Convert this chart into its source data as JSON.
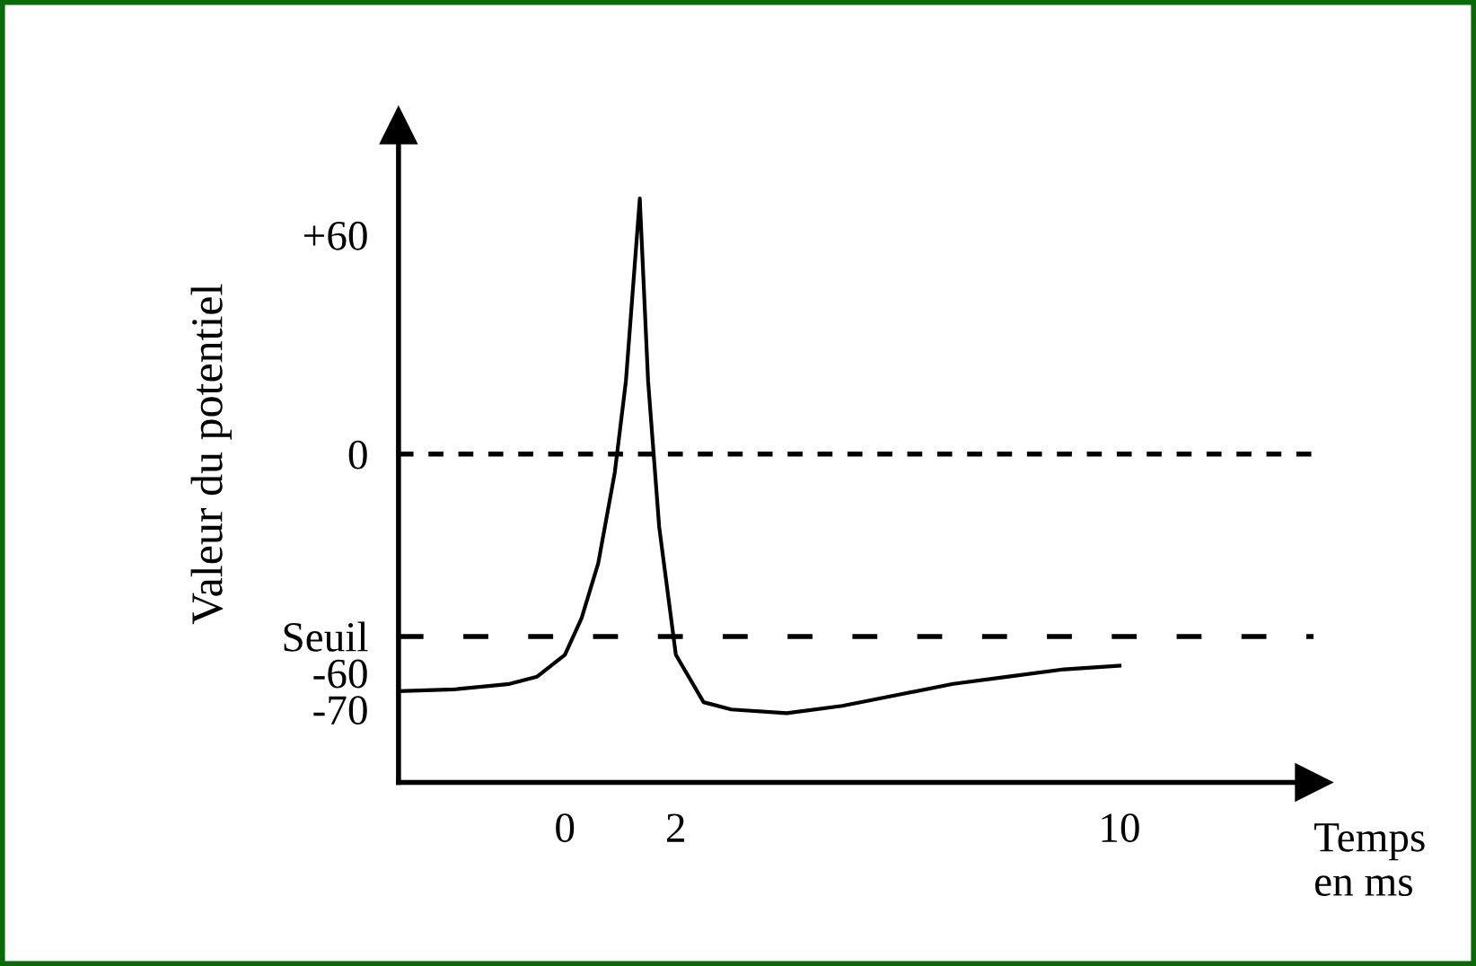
{
  "chart_data": {
    "type": "line",
    "xlabel": "Temps\nen ms",
    "ylabel": "Valeur du potentiel",
    "x": [
      -3,
      -2,
      -1,
      -0.5,
      0,
      0.3,
      0.6,
      0.9,
      1.1,
      1.25,
      1.35,
      1.5,
      1.7,
      2,
      2.5,
      3,
      4,
      5,
      6,
      7,
      8,
      9,
      10
    ],
    "series": [
      {
        "color": "#000000",
        "values": [
          -65,
          -64.5,
          -63,
          -61,
          -55,
          -45,
          -30,
          -5,
          20,
          50,
          70,
          20,
          -20,
          -55,
          -68,
          -70,
          -71,
          -69,
          -66,
          -63,
          -61,
          -59,
          -58
        ]
      }
    ],
    "xlim": [
      -3,
      13.5
    ],
    "ylim": [
      -90,
      90
    ],
    "xticks": [
      0,
      2,
      10
    ],
    "yticks": [
      {
        "value": 60,
        "label": "+60"
      },
      0,
      {
        "value": -50,
        "label": "Seuil"
      },
      -60,
      -70
    ],
    "ref_lines": [
      {
        "axis": "y",
        "value": 0,
        "color": "#000000",
        "line_style": "dotted"
      },
      {
        "axis": "y",
        "value": -50,
        "color": "#000000",
        "line_style": "dashed"
      }
    ],
    "grid": false,
    "marker": "none",
    "line_style": "solid"
  }
}
